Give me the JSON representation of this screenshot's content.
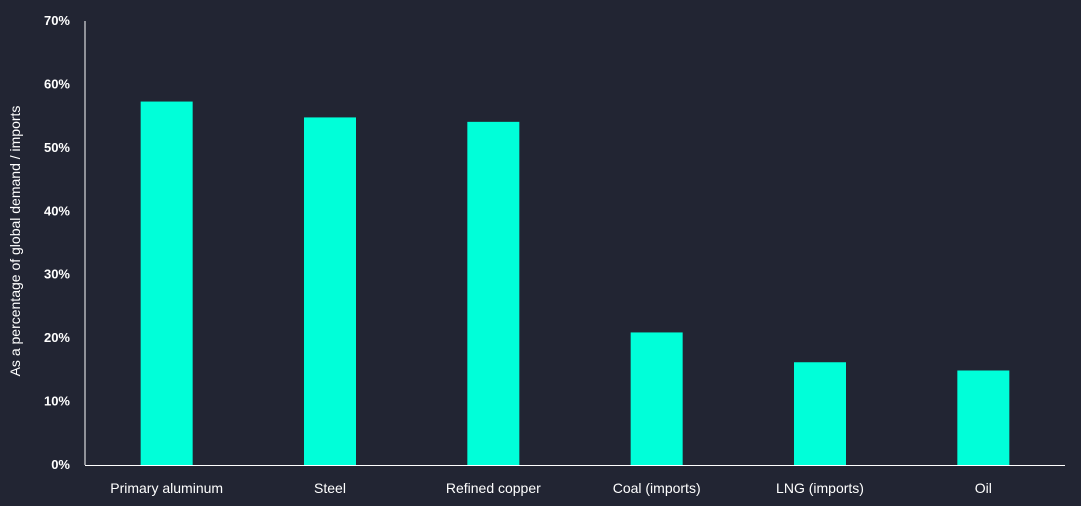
{
  "chart_data": {
    "type": "bar",
    "categories": [
      "Primary aluminum",
      "Steel",
      "Refined copper",
      "Coal (imports)",
      "LNG (imports)",
      "Oil"
    ],
    "values": [
      57.3,
      54.8,
      54.1,
      20.9,
      16.2,
      14.9
    ],
    "ylabel": "As a percentage of global demand / imports",
    "xlabel": "",
    "ylim": [
      0,
      70
    ],
    "yticks": [
      0,
      10,
      20,
      30,
      40,
      50,
      60,
      70
    ],
    "ytick_labels": [
      "0%",
      "10%",
      "20%",
      "30%",
      "40%",
      "50%",
      "60%",
      "70%"
    ],
    "grid": false,
    "legend": "none",
    "colors": {
      "background": "#222533",
      "bar": "#00FFD9",
      "axis": "#FFFFFF",
      "text": "#FFFFFF"
    }
  }
}
